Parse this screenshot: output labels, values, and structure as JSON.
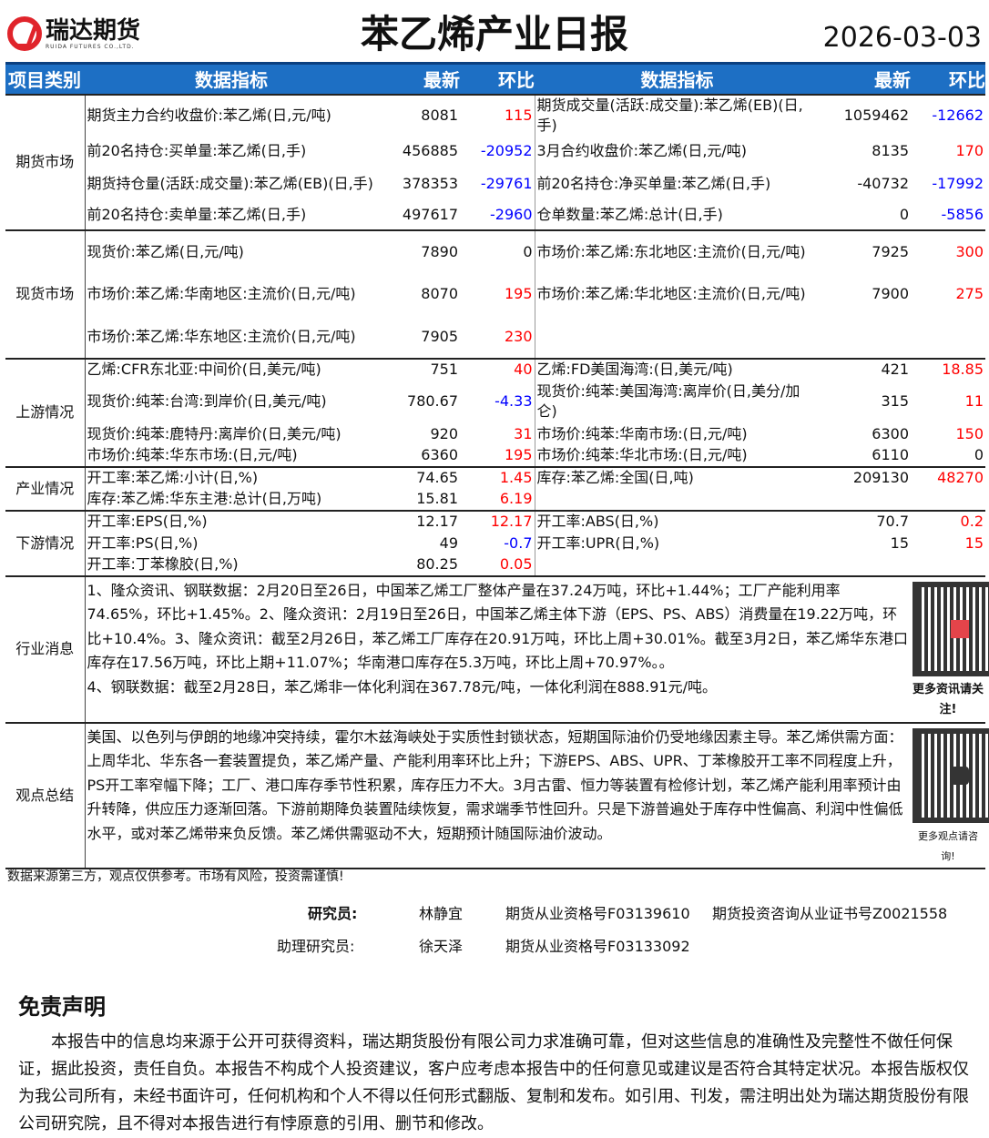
{
  "header": {
    "logo_text": "瑞达期货",
    "logo_sub": "RUIDA FUTURES CO.,LTD.",
    "title": "苯乙烯产业日报",
    "date": "2026-03-03"
  },
  "colors": {
    "up": "#ff0000",
    "down": "#0000ff",
    "header_bg": "#1d6fc4"
  },
  "columns": {
    "category": "项目类别",
    "indicator": "数据指标",
    "latest": "最新",
    "change": "环比"
  },
  "sections": [
    {
      "category": "期货市场",
      "rows": [
        {
          "h": 36,
          "left": {
            "name": "期货主力合约收盘价:苯乙烯(日,元/吨)",
            "latest": "8081",
            "change": "115",
            "dir": "up"
          },
          "right": {
            "name": "期货成交量(活跃:成交量):苯乙烯(EB)(日,手)",
            "latest": "1059462",
            "change": "-12662",
            "dir": "down"
          }
        },
        {
          "h": 34,
          "left": {
            "name": "前20名持仓:买单量:苯乙烯(日,手)",
            "latest": "456885",
            "change": "-20952",
            "dir": "down"
          },
          "right": {
            "name": "3月合约收盘价:苯乙烯(日,元/吨)",
            "latest": "8135",
            "change": "170",
            "dir": "up"
          }
        },
        {
          "h": 38,
          "left": {
            "name": "期货持仓量(活跃:成交量):苯乙烯(EB)(日,手)",
            "latest": "378353",
            "change": "-29761",
            "dir": "down"
          },
          "right": {
            "name": "前20名持仓:净买单量:苯乙烯(日,手)",
            "latest": "-40732",
            "change": "-17992",
            "dir": "down"
          }
        },
        {
          "h": 32,
          "left": {
            "name": "前20名持仓:卖单量:苯乙烯(日,手)",
            "latest": "497617",
            "change": "-2960",
            "dir": "down"
          },
          "right": {
            "name": "仓单数量:苯乙烯:总计(日,手)",
            "latest": "0",
            "change": "-5856",
            "dir": "down"
          }
        }
      ]
    },
    {
      "category": "现货市场",
      "rows": [
        {
          "h": 47,
          "left": {
            "name": "现货价:苯乙烯(日,元/吨)",
            "latest": "7890",
            "change": "0",
            "dir": "flat"
          },
          "right": {
            "name": "市场价:苯乙烯:东北地区:主流价(日,元/吨)",
            "latest": "7925",
            "change": "300",
            "dir": "up"
          }
        },
        {
          "h": 47,
          "left": {
            "name": "市场价:苯乙烯:华南地区:主流价(日,元/吨)",
            "latest": "8070",
            "change": "195",
            "dir": "up"
          },
          "right": {
            "name": "市场价:苯乙烯:华北地区:主流价(日,元/吨)",
            "latest": "7900",
            "change": "275",
            "dir": "up"
          }
        },
        {
          "h": 47,
          "left": {
            "name": "市场价:苯乙烯:华东地区:主流价(日,元/吨)",
            "latest": "7905",
            "change": "230",
            "dir": "up"
          },
          "right": {
            "name": "",
            "latest": "",
            "change": "",
            "dir": "flat"
          }
        }
      ]
    },
    {
      "category": "上游情况",
      "rows": [
        {
          "h": 24,
          "left": {
            "name": "乙烯:CFR东北亚:中间价(日,美元/吨)",
            "latest": "751",
            "change": "40",
            "dir": "up"
          },
          "right": {
            "name": "乙烯:FD美国海湾:(日,美元/吨)",
            "latest": "421",
            "change": "18.85",
            "dir": "up"
          }
        },
        {
          "h": 47,
          "left": {
            "name": "现货价:纯苯:台湾:到岸价(日,美元/吨)",
            "latest": "780.67",
            "change": "-4.33",
            "dir": "down"
          },
          "right": {
            "name": "现货价:纯苯:美国海湾:离岸价(日,美分/加仑)",
            "latest": "315",
            "change": "11",
            "dir": "up"
          }
        },
        {
          "h": 24,
          "left": {
            "name": "现货价:纯苯:鹿特丹:离岸价(日,美元/吨)",
            "latest": "920",
            "change": "31",
            "dir": "up"
          },
          "right": {
            "name": "市场价:纯苯:华南市场:(日,元/吨)",
            "latest": "6300",
            "change": "150",
            "dir": "up"
          }
        },
        {
          "h": 24,
          "left": {
            "name": "市场价:纯苯:华东市场:(日,元/吨)",
            "latest": "6360",
            "change": "195",
            "dir": "up"
          },
          "right": {
            "name": "市场价:纯苯:华北市场:(日,元/吨)",
            "latest": "6110",
            "change": "0",
            "dir": "flat"
          }
        }
      ]
    },
    {
      "category": "产业情况",
      "rows": [
        {
          "h": 24,
          "left": {
            "name": "开工率:苯乙烯:小计(日,%)",
            "latest": "74.65",
            "change": "1.45",
            "dir": "up"
          },
          "right": {
            "name": "库存:苯乙烯:全国(日,吨)",
            "latest": "209130",
            "change": "48270",
            "dir": "up"
          }
        },
        {
          "h": 24,
          "left": {
            "name": "库存:苯乙烯:华东主港:总计(日,万吨)",
            "latest": "15.81",
            "change": "6.19",
            "dir": "up"
          },
          "right": {
            "name": "",
            "latest": "",
            "change": "",
            "dir": "flat"
          }
        }
      ]
    },
    {
      "category": "下游情况",
      "rows": [
        {
          "h": 24,
          "left": {
            "name": "开工率:EPS(日,%)",
            "latest": "12.17",
            "change": "12.17",
            "dir": "up"
          },
          "right": {
            "name": "开工率:ABS(日,%)",
            "latest": "70.7",
            "change": "0.2",
            "dir": "up"
          }
        },
        {
          "h": 24,
          "left": {
            "name": "开工率:PS(日,%)",
            "latest": "49",
            "change": "-0.7",
            "dir": "down"
          },
          "right": {
            "name": "开工率:UPR(日,%)",
            "latest": "15",
            "change": "15",
            "dir": "up"
          }
        },
        {
          "h": 24,
          "left": {
            "name": "开工率:丁苯橡胶(日,%)",
            "latest": "80.25",
            "change": "0.05",
            "dir": "up"
          },
          "right": {
            "name": "",
            "latest": "",
            "change": "",
            "dir": "flat"
          }
        }
      ]
    }
  ],
  "news": {
    "category": "行业消息",
    "text": "1、隆众资讯、钢联数据：2月20日至26日，中国苯乙烯工厂整体产量在37.24万吨，环比+1.44%；工厂产能利用率74.65%，环比+1.45%。2、隆众资讯：2月19日至26日，中国苯乙烯主体下游（EPS、PS、ABS）消费量在19.22万吨，环比+10.4%。3、隆众资讯：截至2月26日，苯乙烯工厂库存在20.91万吨，环比上周+30.01%。截至3月2日，苯乙烯华东港口库存在17.56万吨，环比上期+11.07%；华南港口库存在5.3万吨，环比上周+70.97%。。",
    "text2": "4、钢联数据：截至2月28日，苯乙烯非一体化利润在367.78元/吨，一体化利润在888.91元/吨。",
    "qr_caption": "更多资讯请关注!"
  },
  "opinion": {
    "category": "观点总结",
    "text": "美国、以色列与伊朗的地缘冲突持续，霍尔木兹海峡处于实质性封锁状态，短期国际油价仍受地缘因素主导。苯乙烯供需方面：上周华北、华东各一套装置提负，苯乙烯产量、产能利用率环比上升；下游EPS、ABS、UPR、丁苯橡胶开工率不同程度上升，PS开工率窄幅下降；工厂、港口库存季节性积累，库存压力不大。3月古雷、恒力等装置有检修计划，苯乙烯产能利用率预计由升转降，供应压力逐渐回落。下游前期降负装置陆续恢复，需求端季节性回升。只是下游普遍处于库存中性偏高、利润中性偏低水平，或对苯乙烯带来负反馈。苯乙烯供需驱动不大，短期预计随国际油价波动。",
    "qr_caption": "更多观点请咨询!"
  },
  "note": "数据来源第三方，观点仅供参考。市场有风险，投资需谨慎!",
  "analysts": [
    {
      "role": "研究员:",
      "name": "林静宜",
      "cert1": "期货从业资格号F03139610",
      "cert2": "期货投资咨询从业证书号Z0021558"
    },
    {
      "role": "助理研究员:",
      "name": "徐天泽",
      "cert1": "期货从业资格号F03133092",
      "cert2": ""
    }
  ],
  "disclaimer": {
    "title": "免责声明",
    "text": "本报告中的信息均来源于公开可获得资料，瑞达期货股份有限公司力求准确可靠，但对这些信息的准确性及完整性不做任何保证，据此投资，责任自负。本报告不构成个人投资建议，客户应考虑本报告中的任何意见或建议是否符合其特定状况。本报告版权仅为我公司所有，未经书面许可，任何机构和个人不得以任何形式翻版、复制和发布。如引用、刊发，需注明出处为瑞达期货股份有限公司研究院，且不得对本报告进行有悖原意的引用、删节和修改。"
  }
}
